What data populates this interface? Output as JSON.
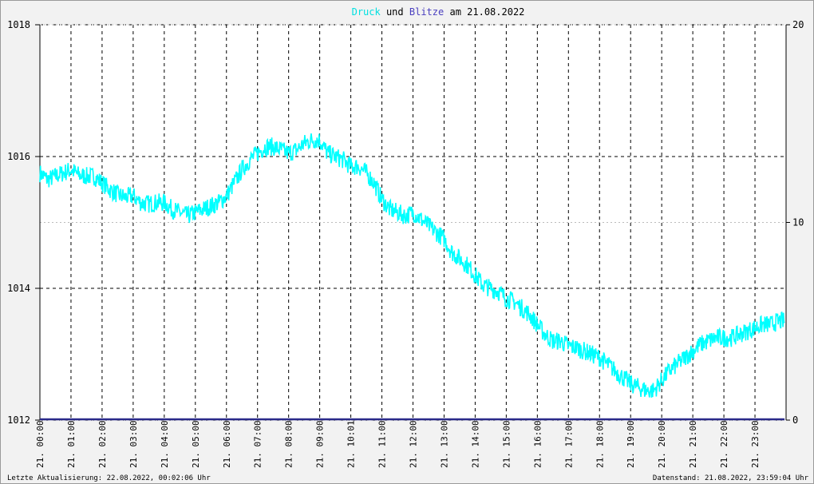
{
  "title": {
    "part1": "Druck",
    "part2": "und",
    "part3": "Blitze",
    "part4": "am 21.08.2022",
    "color_druck": "#00e0e0",
    "color_blitze": "#4a3fbf"
  },
  "footer": {
    "left": "Letzte Aktualisierung: 22.08.2022, 00:02:06 Uhr",
    "right": "Datenstand: 21.08.2022, 23:59:04 Uhr"
  },
  "chart_data": {
    "type": "line",
    "left_axis": {
      "label": "",
      "ylim": [
        1012,
        1018
      ],
      "ticks": [
        "1012",
        "1014",
        "1016",
        "1018"
      ]
    },
    "right_axis": {
      "label": "",
      "ylim": [
        0,
        20
      ],
      "ticks": [
        "0",
        "10",
        "20"
      ]
    },
    "x_range_hours": [
      0,
      24
    ],
    "x_ticks": [
      {
        "hour": 0.0,
        "label": "21. 00:00"
      },
      {
        "hour": 1.0,
        "label": "21. 01:00"
      },
      {
        "hour": 2.0,
        "label": "21. 02:00"
      },
      {
        "hour": 3.0,
        "label": "21. 03:00"
      },
      {
        "hour": 4.0,
        "label": "21. 04:00"
      },
      {
        "hour": 5.0,
        "label": "21. 05:00"
      },
      {
        "hour": 6.0,
        "label": "21. 06:00"
      },
      {
        "hour": 7.0,
        "label": "21. 07:00"
      },
      {
        "hour": 8.0,
        "label": "21. 08:00"
      },
      {
        "hour": 9.0,
        "label": "21. 09:00"
      },
      {
        "hour": 10.0,
        "label": "21. 10:01"
      },
      {
        "hour": 11.0,
        "label": "21. 11:00"
      },
      {
        "hour": 12.0,
        "label": "21. 12:00"
      },
      {
        "hour": 13.0,
        "label": "21. 13:00"
      },
      {
        "hour": 14.0,
        "label": "21. 14:00"
      },
      {
        "hour": 15.0,
        "label": "21. 15:00"
      },
      {
        "hour": 16.0,
        "label": "21. 16:00"
      },
      {
        "hour": 17.0,
        "label": "21. 17:00"
      },
      {
        "hour": 18.0,
        "label": "21. 18:00"
      },
      {
        "hour": 19.0,
        "label": "21. 19:00"
      },
      {
        "hour": 20.0,
        "label": "21. 20:00"
      },
      {
        "hour": 21.0,
        "label": "21. 21:00"
      },
      {
        "hour": 22.0,
        "label": "21. 22:00"
      },
      {
        "hour": 23.0,
        "label": "21. 23:00"
      }
    ],
    "grid": true,
    "series": [
      {
        "name": "Druck",
        "axis": "left",
        "color": "#00ffff",
        "points": [
          [
            0.0,
            1015.75
          ],
          [
            0.25,
            1015.65
          ],
          [
            0.5,
            1015.7
          ],
          [
            0.75,
            1015.75
          ],
          [
            1.0,
            1015.8
          ],
          [
            1.25,
            1015.72
          ],
          [
            1.5,
            1015.7
          ],
          [
            1.75,
            1015.7
          ],
          [
            2.0,
            1015.6
          ],
          [
            2.25,
            1015.5
          ],
          [
            2.5,
            1015.42
          ],
          [
            2.75,
            1015.38
          ],
          [
            3.0,
            1015.4
          ],
          [
            3.25,
            1015.3
          ],
          [
            3.5,
            1015.28
          ],
          [
            3.75,
            1015.3
          ],
          [
            4.0,
            1015.3
          ],
          [
            4.25,
            1015.2
          ],
          [
            4.5,
            1015.15
          ],
          [
            4.75,
            1015.1
          ],
          [
            5.0,
            1015.15
          ],
          [
            5.25,
            1015.2
          ],
          [
            5.5,
            1015.25
          ],
          [
            5.75,
            1015.3
          ],
          [
            6.0,
            1015.4
          ],
          [
            6.25,
            1015.6
          ],
          [
            6.5,
            1015.8
          ],
          [
            6.75,
            1015.95
          ],
          [
            7.0,
            1016.05
          ],
          [
            7.25,
            1016.15
          ],
          [
            7.5,
            1016.15
          ],
          [
            7.75,
            1016.1
          ],
          [
            8.0,
            1016.05
          ],
          [
            8.25,
            1016.1
          ],
          [
            8.5,
            1016.2
          ],
          [
            8.75,
            1016.25
          ],
          [
            9.0,
            1016.25
          ],
          [
            9.25,
            1016.05
          ],
          [
            9.5,
            1016.0
          ],
          [
            9.75,
            1015.95
          ],
          [
            10.0,
            1015.85
          ],
          [
            10.25,
            1015.85
          ],
          [
            10.5,
            1015.75
          ],
          [
            10.75,
            1015.6
          ],
          [
            11.0,
            1015.35
          ],
          [
            11.25,
            1015.2
          ],
          [
            11.5,
            1015.15
          ],
          [
            11.75,
            1015.1
          ],
          [
            12.0,
            1015.15
          ],
          [
            12.25,
            1015.05
          ],
          [
            12.5,
            1014.95
          ],
          [
            12.75,
            1014.85
          ],
          [
            13.0,
            1014.75
          ],
          [
            13.25,
            1014.55
          ],
          [
            13.5,
            1014.45
          ],
          [
            13.75,
            1014.35
          ],
          [
            14.0,
            1014.2
          ],
          [
            14.25,
            1014.05
          ],
          [
            14.5,
            1014.0
          ],
          [
            14.75,
            1013.95
          ],
          [
            15.0,
            1013.85
          ],
          [
            15.25,
            1013.8
          ],
          [
            15.5,
            1013.7
          ],
          [
            15.75,
            1013.6
          ],
          [
            16.0,
            1013.45
          ],
          [
            16.25,
            1013.3
          ],
          [
            16.5,
            1013.2
          ],
          [
            16.75,
            1013.2
          ],
          [
            17.0,
            1013.12
          ],
          [
            17.25,
            1013.1
          ],
          [
            17.5,
            1013.05
          ],
          [
            17.75,
            1013.0
          ],
          [
            18.0,
            1012.95
          ],
          [
            18.25,
            1012.85
          ],
          [
            18.5,
            1012.75
          ],
          [
            18.75,
            1012.65
          ],
          [
            19.0,
            1012.55
          ],
          [
            19.25,
            1012.5
          ],
          [
            19.5,
            1012.45
          ],
          [
            19.75,
            1012.45
          ],
          [
            20.0,
            1012.6
          ],
          [
            20.25,
            1012.75
          ],
          [
            20.5,
            1012.85
          ],
          [
            20.75,
            1012.95
          ],
          [
            21.0,
            1013.05
          ],
          [
            21.25,
            1013.15
          ],
          [
            21.5,
            1013.2
          ],
          [
            21.75,
            1013.25
          ],
          [
            22.0,
            1013.25
          ],
          [
            22.25,
            1013.25
          ],
          [
            22.5,
            1013.3
          ],
          [
            22.75,
            1013.35
          ],
          [
            23.0,
            1013.4
          ],
          [
            23.25,
            1013.45
          ],
          [
            23.5,
            1013.45
          ],
          [
            23.75,
            1013.5
          ],
          [
            23.95,
            1013.5
          ]
        ]
      },
      {
        "name": "Blitze",
        "axis": "right",
        "color": "#2a2a8a",
        "points": [
          [
            0.0,
            0
          ],
          [
            23.95,
            0
          ]
        ]
      }
    ]
  }
}
